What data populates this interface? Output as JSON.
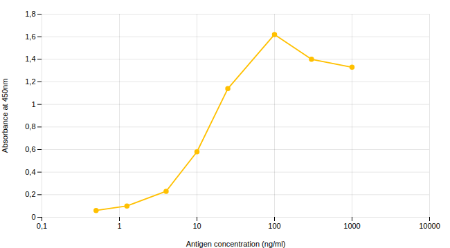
{
  "chart_data": {
    "type": "line",
    "x": [
      0.5,
      1.25,
      4,
      10,
      25,
      100,
      300,
      1000
    ],
    "values": [
      0.06,
      0.1,
      0.23,
      0.58,
      1.14,
      1.62,
      1.4,
      1.33
    ],
    "color": "#FFC000",
    "marker": "circle",
    "xlabel": "Antigen concentration (ng/ml)",
    "ylabel": "Absorbance at 450nm",
    "log": "x",
    "xlim": [
      0.1,
      10000
    ],
    "ylim": [
      0,
      1.8
    ],
    "xticks": [
      {
        "value": 0.1,
        "label": "0,1"
      },
      1,
      10,
      100,
      1000,
      10000
    ],
    "yticks": [
      0,
      {
        "value": 0.2,
        "label": "0,2"
      },
      {
        "value": 0.4,
        "label": "0,4"
      },
      {
        "value": 0.6,
        "label": "0,6"
      },
      {
        "value": 0.8,
        "label": "0,8"
      },
      1,
      {
        "value": 1.2,
        "label": "1,2"
      },
      {
        "value": 1.4,
        "label": "1,4"
      },
      {
        "value": 1.6,
        "label": "1,6"
      },
      {
        "value": 1.8,
        "label": "1,8"
      }
    ],
    "grid": true
  }
}
